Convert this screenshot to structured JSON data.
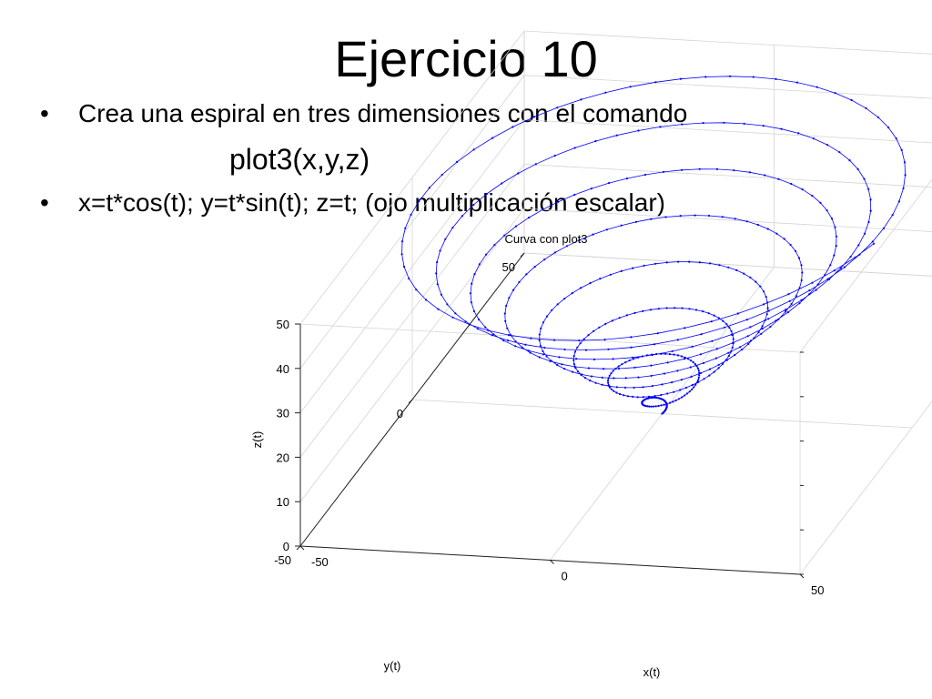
{
  "slide": {
    "title": "Ejercicio 10",
    "bullets": [
      {
        "text": "Crea una espiral en tres dimensiones con el comando"
      },
      {
        "text": "x=t*cos(t); y=t*sin(t); z=t; (ojo multiplicación escalar)"
      }
    ],
    "command": "plot3(x,y,z)",
    "bullet_symbol": "•"
  },
  "chart_data": {
    "type": "line3d",
    "title": "Curva con plot3",
    "xlabel": "x(t)",
    "ylabel": "y(t)",
    "zlabel": "z(t)",
    "xlim": [
      -50,
      50
    ],
    "ylim": [
      -50,
      50
    ],
    "zlim": [
      0,
      50
    ],
    "x_ticks": [
      "-50",
      "0",
      "50"
    ],
    "y_ticks": [
      "-50",
      "0",
      "50"
    ],
    "z_ticks": [
      "0",
      "10",
      "20",
      "30",
      "40",
      "50"
    ],
    "grid": true,
    "series": [
      {
        "x_expr": "t*cos(t)",
        "y_expr": "t*sin(t)",
        "z_expr": "t",
        "t_range": [
          0,
          50
        ],
        "t_step": 0.1,
        "color": "#0000ff",
        "marker": "."
      }
    ]
  }
}
